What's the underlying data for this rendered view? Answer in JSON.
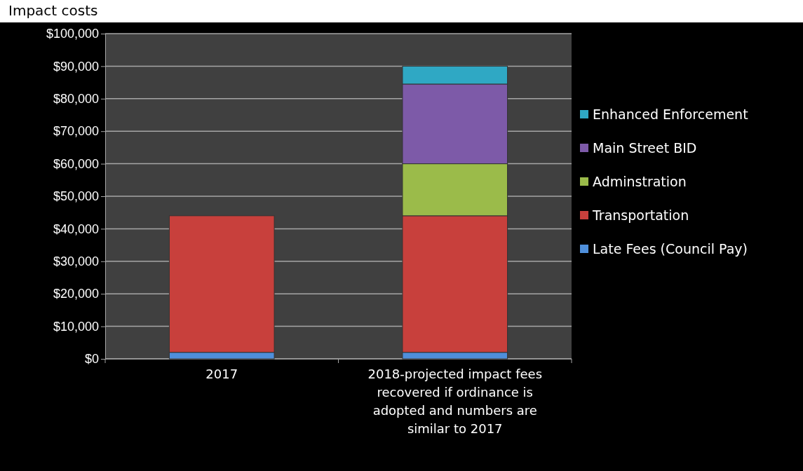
{
  "chart_data": {
    "type": "bar",
    "title": "Impact costs",
    "stacked": true,
    "categories": [
      "2017",
      "2018-projected impact fees recovered if ordinance is adopted and numbers are similar to 2017"
    ],
    "series": [
      {
        "name": "Late Fees (Council Pay)",
        "color": "#4f8fdb",
        "values": [
          2000,
          2000
        ]
      },
      {
        "name": "Transportation",
        "color": "#c8403c",
        "values": [
          42000,
          42000
        ]
      },
      {
        "name": "Adminstration",
        "color": "#9bbb4a",
        "values": [
          null,
          16000
        ]
      },
      {
        "name": "Main Street BID",
        "color": "#7d5aa8",
        "values": [
          null,
          24500
        ]
      },
      {
        "name": "Enhanced Enforcement",
        "color": "#2fa8c4",
        "values": [
          null,
          5500
        ]
      }
    ],
    "ylim": [
      0,
      100000
    ],
    "yticks": [
      {
        "value": 0,
        "label": "$0"
      },
      {
        "value": 10000,
        "label": "$10,000"
      },
      {
        "value": 20000,
        "label": "$20,000"
      },
      {
        "value": 30000,
        "label": "$30,000"
      },
      {
        "value": 40000,
        "label": "$40,000"
      },
      {
        "value": 50000,
        "label": "$50,000"
      },
      {
        "value": 60000,
        "label": "$60,000"
      },
      {
        "value": 70000,
        "label": "$70,000"
      },
      {
        "value": 80000,
        "label": "$80,000"
      },
      {
        "value": 90000,
        "label": "$90,000"
      },
      {
        "value": 100000,
        "label": "$100,000"
      }
    ],
    "grid": "y",
    "legend": "right"
  }
}
